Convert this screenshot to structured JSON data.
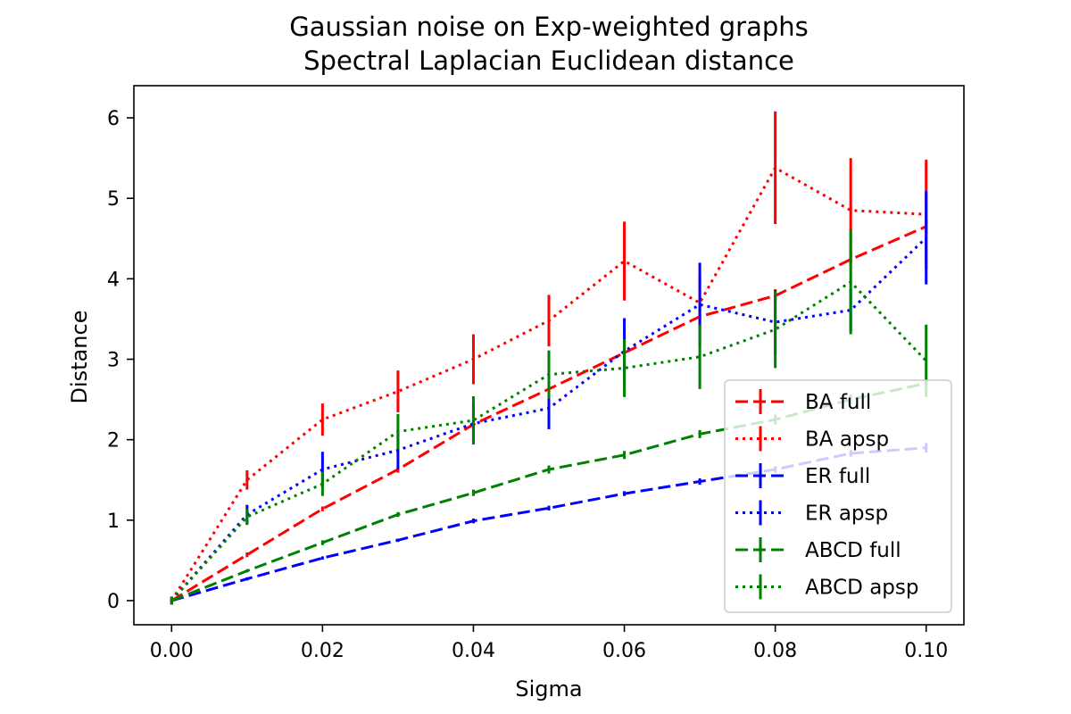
{
  "chart_data": {
    "type": "line",
    "title": "Gaussian noise on Exp-weighted graphs",
    "subtitle": "Spectral Laplacian Euclidean distance",
    "xlabel": "Sigma",
    "ylabel": "Distance",
    "xlim": [
      -0.005,
      0.105
    ],
    "ylim": [
      -0.3,
      6.4
    ],
    "xticks": [
      0.0,
      0.02,
      0.04,
      0.06,
      0.08,
      0.1
    ],
    "xtick_labels": [
      "0.00",
      "0.02",
      "0.04",
      "0.06",
      "0.08",
      "0.10"
    ],
    "yticks": [
      0,
      1,
      2,
      3,
      4,
      5,
      6
    ],
    "ytick_labels": [
      "0",
      "1",
      "2",
      "3",
      "4",
      "5",
      "6"
    ],
    "grid": false,
    "legend_position": "lower-right",
    "x": [
      0.0,
      0.01,
      0.02,
      0.03,
      0.04,
      0.05,
      0.06,
      0.07,
      0.08,
      0.09,
      0.1
    ],
    "series": [
      {
        "name": "BA full",
        "color": "#ff0000",
        "linestyle": "dashed",
        "values": [
          0.0,
          0.57,
          1.14,
          1.63,
          2.19,
          2.63,
          3.08,
          3.53,
          3.79,
          4.24,
          4.65
        ],
        "errors": [
          0.02,
          0.03,
          0.03,
          0.04,
          0.05,
          0.06,
          0.06,
          0.07,
          0.08,
          0.08,
          0.09
        ]
      },
      {
        "name": "BA apsp",
        "color": "#ff0000",
        "linestyle": "dotted",
        "values": [
          0.0,
          1.5,
          2.25,
          2.6,
          3.0,
          3.48,
          4.22,
          3.7,
          5.38,
          4.85,
          4.8
        ],
        "errors": [
          0.05,
          0.12,
          0.2,
          0.26,
          0.31,
          0.32,
          0.49,
          0.35,
          0.7,
          0.65,
          0.68
        ]
      },
      {
        "name": "ER full",
        "color": "#0000ff",
        "linestyle": "dashed",
        "values": [
          0.0,
          0.27,
          0.53,
          0.75,
          0.99,
          1.15,
          1.33,
          1.48,
          1.63,
          1.83,
          1.9
        ],
        "errors": [
          0.01,
          0.02,
          0.02,
          0.02,
          0.03,
          0.03,
          0.03,
          0.04,
          0.04,
          0.04,
          0.06
        ]
      },
      {
        "name": "ER apsp",
        "color": "#0000ff",
        "linestyle": "dotted",
        "values": [
          0.0,
          1.07,
          1.63,
          1.87,
          2.2,
          2.39,
          3.1,
          3.68,
          3.46,
          3.61,
          4.51
        ],
        "errors": [
          0.05,
          0.12,
          0.22,
          0.24,
          0.24,
          0.26,
          0.41,
          0.52,
          0.4,
          0.26,
          0.58
        ]
      },
      {
        "name": "ABCD full",
        "color": "#008000",
        "linestyle": "dashed",
        "values": [
          0.0,
          0.37,
          0.72,
          1.07,
          1.34,
          1.63,
          1.81,
          2.07,
          2.25,
          2.5,
          2.7
        ],
        "errors": [
          0.01,
          0.02,
          0.03,
          0.03,
          0.04,
          0.05,
          0.05,
          0.05,
          0.06,
          0.06,
          0.06
        ]
      },
      {
        "name": "ABCD apsp",
        "color": "#008000",
        "linestyle": "dotted",
        "values": [
          0.0,
          1.04,
          1.45,
          2.1,
          2.24,
          2.81,
          2.89,
          3.03,
          3.37,
          3.96,
          2.98
        ],
        "errors": [
          0.05,
          0.1,
          0.15,
          0.22,
          0.3,
          0.3,
          0.36,
          0.4,
          0.48,
          0.65,
          0.45
        ]
      }
    ]
  }
}
